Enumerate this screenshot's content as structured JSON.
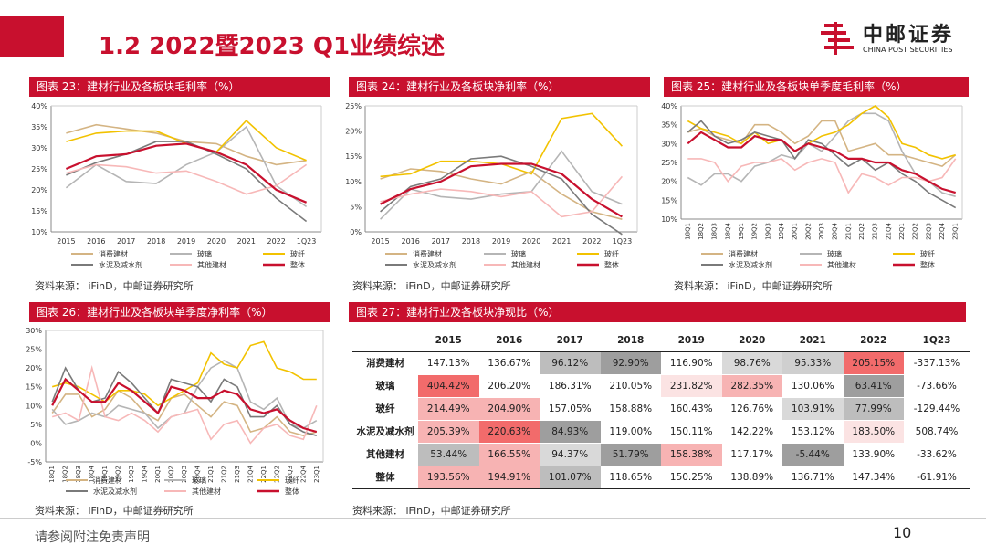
{
  "title": "1.2 2022暨2023 Q1业绩综述",
  "logo": {
    "cn": "中邮证券",
    "en": "CHINA POST SECURITIES"
  },
  "colors": {
    "accent": "#c8102e",
    "consumer": "#d4b483",
    "glass": "#b5b5b5",
    "fiber": "#f2c200",
    "cement": "#7a7a7a",
    "other": "#f7b8b8",
    "total": "#c8102e"
  },
  "legend_labels": [
    "消费建材",
    "玻璃",
    "玻纤",
    "水泥及减水剂",
    "其他建材",
    "整体"
  ],
  "source_text": "资料来源：  iFinD，中邮证券研究所",
  "footer": "请参阅附注免责声明",
  "page_number": "10",
  "charts": {
    "c23": {
      "title": "图表 23：建材行业及各板块毛利率（%）"
    },
    "c24": {
      "title": "图表 24：建材行业及各板块净利率（%）"
    },
    "c25": {
      "title": "图表 25：建材行业及各板块单季度毛利率（%）"
    },
    "c26": {
      "title": "图表 26：建材行业及各板块单季度净利率（%）"
    }
  },
  "chart_data": [
    {
      "type": "line",
      "title": "图表 23：建材行业及各板块毛利率（%）",
      "x": [
        "2015",
        "2016",
        "2017",
        "2018",
        "2019",
        "2020",
        "2021",
        "2022",
        "1Q23"
      ],
      "ylim": [
        10,
        40
      ],
      "yticks": [
        "10%",
        "15%",
        "20%",
        "25%",
        "30%",
        "35%",
        "40%"
      ],
      "series": [
        {
          "name": "消费建材",
          "values": [
            33.5,
            35.5,
            34.5,
            33.5,
            31.5,
            31.0,
            28.0,
            26.0,
            27.0
          ]
        },
        {
          "name": "玻璃",
          "values": [
            20.5,
            26.0,
            22.0,
            21.5,
            26.0,
            29.0,
            35.0,
            21.0,
            16.0
          ]
        },
        {
          "name": "玻纤",
          "values": [
            31.5,
            33.5,
            34.0,
            34.0,
            31.0,
            29.0,
            36.5,
            30.0,
            27.0
          ]
        },
        {
          "name": "水泥及减水剂",
          "values": [
            23.5,
            26.5,
            28.5,
            31.5,
            31.5,
            28.5,
            25.0,
            18.0,
            12.5
          ]
        },
        {
          "name": "其他建材",
          "values": [
            24.0,
            26.0,
            25.5,
            24.0,
            24.5,
            22.0,
            19.0,
            21.0,
            26.0
          ]
        },
        {
          "name": "整体",
          "values": [
            25.0,
            28.0,
            28.5,
            30.5,
            31.0,
            29.0,
            26.0,
            20.0,
            17.0
          ]
        }
      ]
    },
    {
      "type": "line",
      "title": "图表 24：建材行业及各板块净利率（%）",
      "x": [
        "2015",
        "2016",
        "2017",
        "2018",
        "2019",
        "2020",
        "2021",
        "2022",
        "1Q23"
      ],
      "ylim": [
        0,
        25
      ],
      "yticks": [
        "0%",
        "5%",
        "10%",
        "15%",
        "20%",
        "25%"
      ],
      "series": [
        {
          "name": "消费建材",
          "values": [
            10.5,
            12.5,
            12.0,
            10.5,
            9.5,
            12.0,
            7.5,
            4.0,
            2.5
          ]
        },
        {
          "name": "玻璃",
          "values": [
            2.5,
            8.5,
            7.0,
            6.5,
            7.5,
            8.0,
            16.0,
            8.0,
            5.5
          ]
        },
        {
          "name": "玻纤",
          "values": [
            11.0,
            11.5,
            14.0,
            14.0,
            13.5,
            11.5,
            22.5,
            23.5,
            17.0
          ]
        },
        {
          "name": "水泥及减水剂",
          "values": [
            4.0,
            9.0,
            10.5,
            14.5,
            15.0,
            13.0,
            10.5,
            3.5,
            -0.5
          ]
        },
        {
          "name": "其他建材",
          "values": [
            6.0,
            7.5,
            8.5,
            8.0,
            7.0,
            8.0,
            3.0,
            4.0,
            11.0
          ]
        },
        {
          "name": "整体",
          "values": [
            5.5,
            8.5,
            10.0,
            13.0,
            13.5,
            13.5,
            11.5,
            6.5,
            3.0
          ]
        }
      ]
    },
    {
      "type": "line",
      "title": "图表 25：建材行业及各板块单季度毛利率（%）",
      "x": [
        "18Q1",
        "18Q2",
        "18Q3",
        "18Q4",
        "19Q1",
        "19Q2",
        "19Q3",
        "19Q4",
        "20Q1",
        "20Q2",
        "20Q3",
        "20Q4",
        "21Q1",
        "21Q2",
        "21Q3",
        "21Q4",
        "22Q1",
        "22Q2",
        "22Q3",
        "22Q4",
        "23Q1"
      ],
      "ylim": [
        10,
        40
      ],
      "yticks": [
        "10%",
        "15%",
        "20%",
        "25%",
        "30%",
        "35%",
        "40%"
      ],
      "series": [
        {
          "name": "消费建材",
          "values": [
            33,
            34,
            32,
            31,
            30,
            35,
            35,
            33,
            30,
            32,
            36,
            36,
            28,
            29,
            30,
            27,
            27,
            26,
            25,
            24,
            27
          ]
        },
        {
          "name": "玻璃",
          "values": [
            21,
            19,
            22,
            22,
            20,
            24,
            25,
            27,
            26,
            30,
            28,
            32,
            36,
            38,
            38,
            36,
            28,
            22,
            20,
            17,
            16
          ]
        },
        {
          "name": "玻纤",
          "values": [
            36,
            34,
            33,
            32,
            30,
            33,
            30,
            31,
            28,
            30,
            32,
            33,
            35,
            38,
            40,
            37,
            30,
            29,
            27,
            26,
            27
          ]
        },
        {
          "name": "水泥及减水剂",
          "values": [
            33,
            36,
            32,
            30,
            31,
            33,
            32,
            31,
            26,
            31,
            30,
            27,
            24,
            26,
            23,
            25,
            22,
            20,
            17,
            15,
            13
          ]
        },
        {
          "name": "其他建材",
          "values": [
            26,
            26,
            25,
            20,
            24,
            25,
            25,
            26,
            23,
            25,
            26,
            25,
            17,
            22,
            21,
            19,
            21,
            21,
            20,
            21,
            26
          ]
        },
        {
          "name": "整体",
          "values": [
            30,
            33,
            31,
            29,
            29,
            32,
            31,
            31,
            28,
            30,
            29,
            28,
            26,
            26,
            25,
            25,
            23,
            22,
            20,
            18,
            17
          ]
        }
      ]
    },
    {
      "type": "line",
      "title": "图表 26：建材行业及各板块单季度净利率（%）",
      "x": [
        "18Q1",
        "18Q2",
        "18Q3",
        "18Q4",
        "19Q1",
        "19Q2",
        "19Q3",
        "19Q4",
        "20Q1",
        "20Q2",
        "20Q3",
        "20Q4",
        "21Q1",
        "21Q2",
        "21Q3",
        "21Q4",
        "22Q1",
        "22Q2",
        "22Q3",
        "22Q4",
        "23Q1"
      ],
      "ylim": [
        -5,
        30
      ],
      "yticks": [
        "-5%",
        "0%",
        "5%",
        "10%",
        "15%",
        "20%",
        "25%",
        "30%"
      ],
      "series": [
        {
          "name": "消费建材",
          "values": [
            8,
            13,
            13,
            7,
            9,
            14,
            12,
            8,
            6,
            12,
            13,
            10,
            7,
            11,
            10,
            3,
            4,
            7,
            3,
            2,
            3
          ]
        },
        {
          "name": "玻璃",
          "values": [
            9,
            5,
            6,
            8,
            7,
            10,
            9,
            8,
            4,
            7,
            8,
            15,
            20,
            22,
            20,
            11,
            9,
            12,
            5,
            4,
            6
          ]
        },
        {
          "name": "玻纤",
          "values": [
            15,
            16,
            15,
            13,
            11,
            14,
            14,
            13,
            10,
            12,
            14,
            16,
            24,
            21,
            20,
            26,
            27,
            20,
            19,
            17,
            17
          ]
        },
        {
          "name": "水泥及减水剂",
          "values": [
            11,
            20,
            14,
            11,
            12,
            19,
            16,
            12,
            8,
            17,
            16,
            15,
            11,
            17,
            15,
            7,
            7,
            10,
            5,
            3,
            2
          ]
        },
        {
          "name": "其他建材",
          "values": [
            7,
            8,
            6,
            20,
            7,
            6,
            8,
            6,
            3,
            7,
            8,
            9,
            1,
            5,
            6,
            0,
            4,
            5,
            2,
            1,
            10
          ]
        },
        {
          "name": "整体",
          "values": [
            10,
            17,
            14,
            11,
            11,
            16,
            14,
            11,
            8,
            15,
            14,
            12,
            12,
            14,
            13,
            9,
            8,
            9,
            6,
            4,
            3
          ]
        }
      ]
    },
    {
      "type": "table",
      "title": "图表 27：建材行业及各板块净现比（%）",
      "columns": [
        "",
        "2015",
        "2016",
        "2017",
        "2018",
        "2019",
        "2020",
        "2021",
        "2022",
        "1Q23"
      ],
      "rows": [
        {
          "label": "消费建材",
          "cells": [
            "147.13%",
            "136.67%",
            "96.12%",
            "92.90%",
            "116.90%",
            "98.76%",
            "95.33%",
            "205.15%",
            "-337.13%"
          ],
          "colors": [
            "#ffffff",
            "#ffffff",
            "#bdbdbd",
            "#9e9e9e",
            "#ffffff",
            "#d9d9d9",
            "#cfcfcf",
            "#f26b6b",
            "#ffffff"
          ]
        },
        {
          "label": "玻璃",
          "cells": [
            "404.42%",
            "206.20%",
            "186.31%",
            "210.05%",
            "231.82%",
            "282.35%",
            "130.06%",
            "63.41%",
            "-73.66%"
          ],
          "colors": [
            "#f26b6b",
            "#ffffff",
            "#ffffff",
            "#ffffff",
            "#fbe3e3",
            "#f7b3b3",
            "#ffffff",
            "#9e9e9e",
            "#ffffff"
          ]
        },
        {
          "label": "玻纤",
          "cells": [
            "214.49%",
            "204.90%",
            "157.05%",
            "158.88%",
            "160.43%",
            "126.76%",
            "103.91%",
            "77.99%",
            "-129.44%"
          ],
          "colors": [
            "#f7b3b3",
            "#f7b3b3",
            "#ffffff",
            "#ffffff",
            "#ffffff",
            "#ffffff",
            "#d9d9d9",
            "#bdbdbd",
            "#ffffff"
          ]
        },
        {
          "label": "水泥及减水剂",
          "cells": [
            "205.39%",
            "220.63%",
            "84.93%",
            "119.00%",
            "150.11%",
            "142.22%",
            "153.12%",
            "183.50%",
            "508.74%"
          ],
          "colors": [
            "#f7b3b3",
            "#f26b6b",
            "#9e9e9e",
            "#ffffff",
            "#ffffff",
            "#ffffff",
            "#ffffff",
            "#fbe3e3",
            "#ffffff"
          ]
        },
        {
          "label": "其他建材",
          "cells": [
            "53.44%",
            "166.55%",
            "94.37%",
            "51.79%",
            "158.38%",
            "117.17%",
            "-5.44%",
            "133.90%",
            "-33.62%"
          ],
          "colors": [
            "#bdbdbd",
            "#f7b3b3",
            "#d9d9d9",
            "#9e9e9e",
            "#f7b3b3",
            "#ffffff",
            "#9e9e9e",
            "#ffffff",
            "#ffffff"
          ]
        },
        {
          "label": "整体",
          "cells": [
            "193.56%",
            "194.91%",
            "101.07%",
            "118.65%",
            "150.25%",
            "138.89%",
            "136.71%",
            "147.34%",
            "-61.91%"
          ],
          "colors": [
            "#f7b3b3",
            "#f7b3b3",
            "#bdbdbd",
            "#ffffff",
            "#ffffff",
            "#ffffff",
            "#ffffff",
            "#ffffff",
            "#ffffff"
          ]
        }
      ]
    }
  ]
}
